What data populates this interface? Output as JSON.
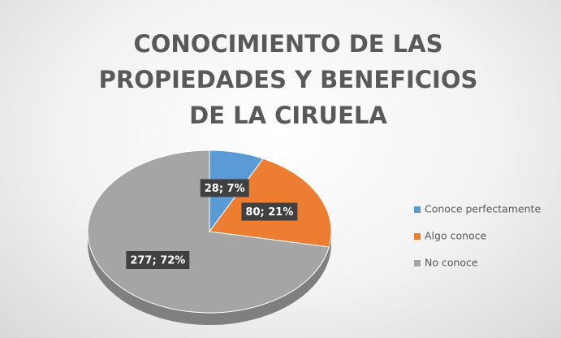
{
  "chart_data": {
    "type": "pie",
    "title": "CONOCIMIENTO DE LAS PROPIEDADES Y BENEFICIOS DE LA CIRUELA",
    "categories": [
      "Conoce perfectamente",
      "Algo conoce",
      "No conoce"
    ],
    "values": [
      28,
      80,
      277
    ],
    "value_labels": [
      "28; 7%",
      "80; 21%",
      "277; 72%"
    ],
    "colors": [
      "#5b9bd5",
      "#ed7d31",
      "#a5a5a5"
    ],
    "legend": "right"
  }
}
